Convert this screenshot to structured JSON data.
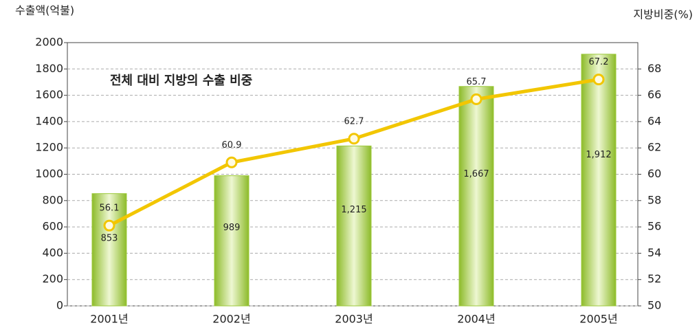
{
  "chart_data": {
    "type": "bar_line",
    "annotation": "전체 대비 지방의 수출 비중",
    "y_label": "수출액(억불)",
    "y2_label": "지방비중(%)",
    "categories": [
      "2001년",
      "2002년",
      "2003년",
      "2004년",
      "2005년"
    ],
    "series": [
      {
        "name": "수출액",
        "type": "bar",
        "color": "#9cc93a",
        "values": [
          853,
          989,
          1215,
          1667,
          1912
        ],
        "value_labels": [
          "853",
          "989",
          "1,215",
          "1,667",
          "1,912"
        ]
      },
      {
        "name": "지방비중",
        "type": "line",
        "axis": "y2",
        "color": "#f2c600",
        "values": [
          56.1,
          60.9,
          62.7,
          65.7,
          67.2
        ]
      }
    ],
    "ylim": [
      0,
      2000
    ],
    "yticks": [
      0,
      200,
      400,
      600,
      800,
      1000,
      1200,
      1400,
      1600,
      1800,
      2000
    ],
    "y2lim": [
      50,
      70
    ],
    "y2ticks": [
      50,
      52,
      54,
      56,
      58,
      60,
      62,
      64,
      66,
      68
    ],
    "grid": true
  }
}
